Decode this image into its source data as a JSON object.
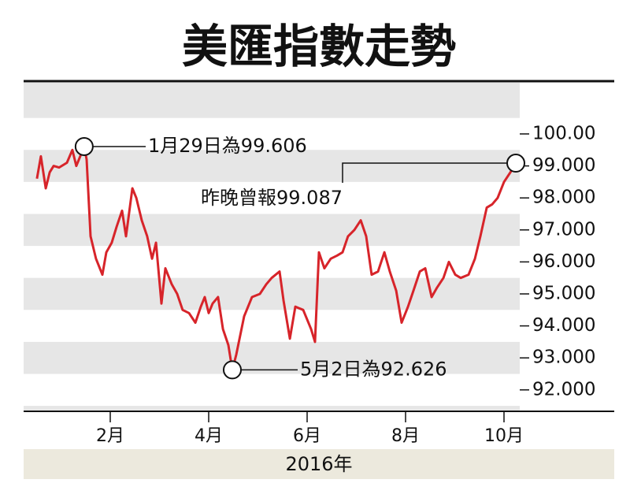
{
  "chart_data": {
    "type": "line",
    "title": "美匯指數走勢",
    "xlabel": "2016年",
    "x": [
      0.51,
      0.59,
      0.69,
      0.77,
      0.85,
      0.96,
      1.12,
      1.23,
      1.31,
      1.47,
      1.52,
      1.6,
      1.71,
      1.84,
      1.92,
      2.03,
      2.13,
      2.24,
      2.32,
      2.45,
      2.53,
      2.64,
      2.75,
      2.85,
      2.93,
      3.04,
      3.12,
      3.25,
      3.36,
      3.47,
      3.6,
      3.73,
      3.84,
      3.92,
      4.0,
      4.08,
      4.19,
      4.29,
      4.4,
      4.48,
      4.56,
      4.72,
      4.88,
      5.04,
      5.17,
      5.28,
      5.44,
      5.52,
      5.65,
      5.76,
      5.92,
      6.08,
      6.16,
      6.24,
      6.35,
      6.48,
      6.61,
      6.72,
      6.83,
      6.96,
      7.09,
      7.2,
      7.31,
      7.44,
      7.57,
      7.68,
      7.81,
      7.92,
      8.05,
      8.16,
      8.29,
      8.4,
      8.53,
      8.64,
      8.77,
      8.88,
      9.01,
      9.12,
      9.28,
      9.41,
      9.52,
      9.65,
      9.76,
      9.87,
      10.0,
      10.13,
      10.24
    ],
    "series": [
      {
        "color": "#d7242a",
        "values": [
          98.6,
          99.3,
          98.3,
          98.8,
          99.0,
          98.95,
          99.1,
          99.5,
          99.0,
          99.606,
          99.2,
          96.8,
          96.1,
          95.6,
          96.3,
          96.6,
          97.1,
          97.6,
          96.8,
          98.3,
          98.0,
          97.3,
          96.8,
          96.1,
          96.6,
          94.7,
          95.8,
          95.3,
          95.0,
          94.5,
          94.4,
          94.1,
          94.6,
          94.9,
          94.4,
          94.7,
          94.9,
          93.9,
          93.4,
          92.626,
          93.1,
          94.3,
          94.9,
          95.0,
          95.3,
          95.5,
          95.7,
          94.8,
          93.6,
          94.6,
          94.5,
          93.9,
          93.5,
          96.3,
          95.8,
          96.1,
          96.2,
          96.3,
          96.8,
          97.0,
          97.3,
          96.8,
          95.6,
          95.7,
          96.3,
          95.7,
          95.1,
          94.1,
          94.6,
          95.1,
          95.7,
          95.8,
          94.9,
          95.2,
          95.5,
          96.0,
          95.6,
          95.5,
          95.6,
          96.1,
          96.8,
          97.7,
          97.8,
          98.0,
          98.5,
          98.8,
          99.087
        ]
      }
    ],
    "xlim": [
      0.24,
      12.24
    ],
    "xticks": [
      {
        "value": 2,
        "label": "2月"
      },
      {
        "value": 4,
        "label": "4月"
      },
      {
        "value": 6,
        "label": "6月"
      },
      {
        "value": 8,
        "label": "8月"
      },
      {
        "value": 10,
        "label": "10月"
      }
    ],
    "ylim": [
      91.33,
      101.6
    ],
    "yticks": [
      {
        "value": 100,
        "label": "100.00"
      },
      {
        "value": 99,
        "label": "99.000"
      },
      {
        "value": 98,
        "label": "98.000"
      },
      {
        "value": 97,
        "label": "97.000"
      },
      {
        "value": 96,
        "label": "96.000"
      },
      {
        "value": 95,
        "label": "95.000"
      },
      {
        "value": 94,
        "label": "94.000"
      },
      {
        "value": 93,
        "label": "93.000"
      },
      {
        "value": 92,
        "label": "92.000"
      }
    ],
    "annotations": [
      {
        "text": "1月29日為99.606",
        "x": 1.47,
        "y": 99.606
      },
      {
        "text": "昨晚曾報99.087",
        "x": 10.24,
        "y": 99.087
      },
      {
        "text": "5月2日為92.626",
        "x": 4.48,
        "y": 92.626
      }
    ]
  }
}
